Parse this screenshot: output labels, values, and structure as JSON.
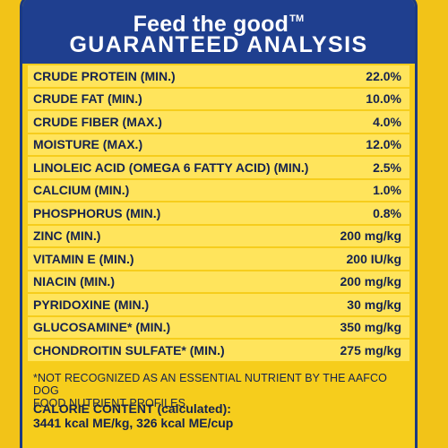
{
  "header": {
    "tagline": "Feed the good",
    "trademark": "TM",
    "title": "GUARANTEED ANALYSIS"
  },
  "analysis": [
    {
      "label": "CRUDE PROTEIN (MIN.)",
      "value": "22.0%"
    },
    {
      "label": "CRUDE FAT (MIN.)",
      "value": "10.0%"
    },
    {
      "label": "CRUDE FIBER (MAX.)",
      "value": "4.0%"
    },
    {
      "label": "MOISTURE (MAX.)",
      "value": "12.0%"
    },
    {
      "label": "LINOLEIC ACID (OMEGA 6 FATTY ACID) (MIN.)",
      "value": "2.5%"
    },
    {
      "label": "CALCIUM (MIN.)",
      "value": "1.0%"
    },
    {
      "label": "PHOSPHORUS (MIN.)",
      "value": "0.8%"
    },
    {
      "label": "ZINC (MIN.)",
      "value": "200 mg/kg"
    },
    {
      "label": "VITAMIN E (MIN.)",
      "value": "200 IU/kg"
    },
    {
      "label": "NIACIN (MIN.)",
      "value": "200 mg/kg"
    },
    {
      "label": "PYRIDOXINE (MIN.)",
      "value": "30 mg/kg"
    },
    {
      "label": "GLUCOSAMINE* (MIN.)",
      "value": "350 mg/kg"
    },
    {
      "label": "CHONDROITIN SULFATE* (MIN.)",
      "value": "275 mg/kg"
    }
  ],
  "footnote": {
    "line1": "*NOT RECOGNIZED AS AN ESSENTIAL NUTRIENT BY THE AAFCO DOG",
    "line2": "FOOD NUTRIENT PROFILES."
  },
  "calorie": {
    "heading": "CALORIE CONTENT (calculated):",
    "values": "3441 kcal ME/kg, 326 kcal ME/cup"
  },
  "colors": {
    "background": "#f2c318",
    "header_blue": "#1f3f8f",
    "row_fill": "#ffe45c",
    "text_navy": "#15224e"
  }
}
